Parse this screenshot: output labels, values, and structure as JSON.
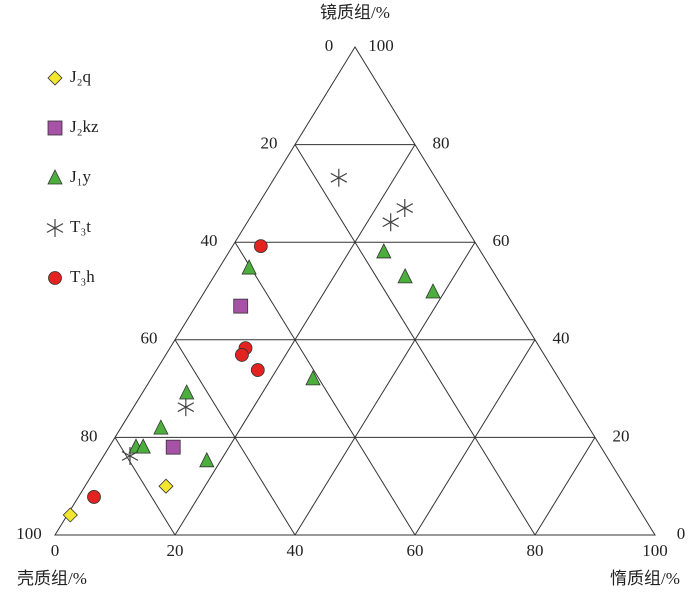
{
  "chart_data": {
    "type": "ternary",
    "axes": [
      {
        "label": "镜质组/%",
        "ticks": [
          0,
          20,
          40,
          60,
          80,
          100
        ]
      },
      {
        "label": "壳质组/%",
        "ticks": [
          0,
          20,
          40,
          60,
          80,
          100
        ]
      },
      {
        "label": "惰质组/%",
        "ticks": [
          0,
          20,
          40,
          60,
          80,
          100
        ]
      }
    ],
    "series": [
      {
        "name": "J₂q",
        "marker": "diamond",
        "color": "#f2e62e",
        "values": [
          [
            4.1,
            95.4,
            0.5
          ],
          [
            10.0,
            76.5,
            13.5
          ]
        ]
      },
      {
        "name": "J₂kz",
        "marker": "square",
        "color": "#a652a6",
        "values": [
          [
            46.9,
            45.6,
            7.5
          ],
          [
            18.0,
            71.3,
            10.7
          ]
        ]
      },
      {
        "name": "J₁y",
        "marker": "triangle",
        "color": "#4cae3c",
        "values": [
          [
            54.7,
            40.3,
            5.0
          ],
          [
            58.0,
            16.2,
            25.8
          ],
          [
            52.9,
            15.2,
            31.9
          ],
          [
            49.8,
            12.1,
            38.1
          ],
          [
            32.0,
            41.0,
            27.0
          ],
          [
            29.1,
            63.5,
            7.4
          ],
          [
            21.9,
            71.4,
            6.7
          ],
          [
            18.0,
            77.5,
            4.5
          ],
          [
            18.0,
            76.3,
            5.7
          ],
          [
            15.2,
            67.1,
            17.7
          ]
        ]
      },
      {
        "name": "T₃t",
        "marker": "star",
        "color": "#444444",
        "values": [
          [
            73.2,
            16.1,
            10.7
          ],
          [
            64.1,
            12.0,
            23.9
          ],
          [
            67.0,
            8.2,
            24.8
          ],
          [
            26.2,
            65.1,
            8.7
          ],
          [
            16.2,
            79.4,
            4.4
          ]
        ]
      },
      {
        "name": "T₃h",
        "marker": "circle",
        "color": "#e3231f",
        "values": [
          [
            59.2,
            36.1,
            4.7
          ],
          [
            38.3,
            49.1,
            12.6
          ],
          [
            36.9,
            50.4,
            12.7
          ],
          [
            33.8,
            49.3,
            16.9
          ],
          [
            7.8,
            89.6,
            2.6
          ]
        ]
      }
    ]
  }
}
